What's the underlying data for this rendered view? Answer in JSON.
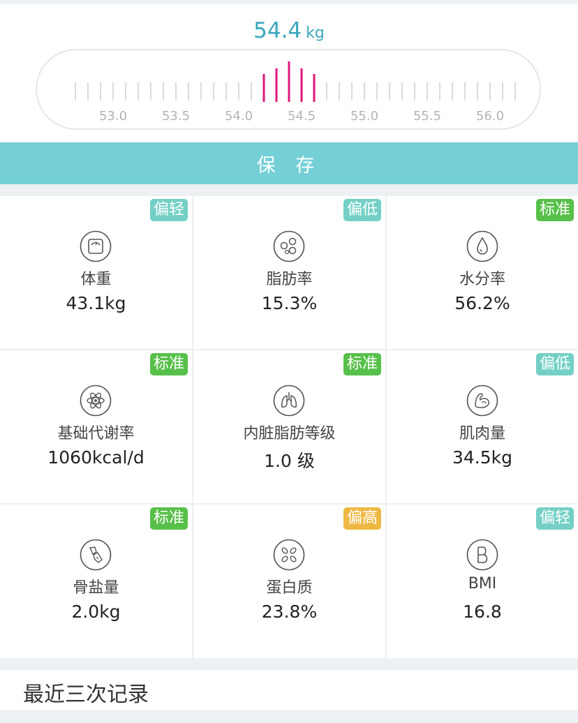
{
  "weight": {
    "value": "54.4",
    "unit": "kg"
  },
  "ruler": {
    "labels": [
      "53.0",
      "53.5",
      "54.0",
      "54.5",
      "55.0",
      "55.5",
      "56.0"
    ],
    "highlight_color": "#e0147a",
    "tick_color": "#cfcfcf"
  },
  "save_label": "保 存",
  "metrics": [
    {
      "name": "weight",
      "icon": "scale-icon",
      "label": "体重",
      "value": "43.1kg",
      "status": "偏轻",
      "status_color": "#74d0c6"
    },
    {
      "name": "body-fat",
      "icon": "fat-cells-icon",
      "label": "脂肪率",
      "value": "15.3%",
      "status": "偏低",
      "status_color": "#74d0c6"
    },
    {
      "name": "water",
      "icon": "water-drop-icon",
      "label": "水分率",
      "value": "56.2%",
      "status": "标准",
      "status_color": "#57c04a"
    },
    {
      "name": "bmr",
      "icon": "atom-icon",
      "label": "基础代谢率",
      "value": "1060kcal/d",
      "status": "标准",
      "status_color": "#57c04a"
    },
    {
      "name": "visceral-fat",
      "icon": "lungs-icon",
      "label": "内脏脂肪等级",
      "value": "1.0 级",
      "status": "标准",
      "status_color": "#57c04a"
    },
    {
      "name": "muscle",
      "icon": "muscle-icon",
      "label": "肌肉量",
      "value": "34.5kg",
      "status": "偏低",
      "status_color": "#74d0c6"
    },
    {
      "name": "bone",
      "icon": "bone-icon",
      "label": "骨盐量",
      "value": "2.0kg",
      "status": "标准",
      "status_color": "#57c04a"
    },
    {
      "name": "protein",
      "icon": "protein-icon",
      "label": "蛋白质",
      "value": "23.8%",
      "status": "偏高",
      "status_color": "#efb845"
    },
    {
      "name": "bmi",
      "icon": "bmi-icon",
      "label": "BMI",
      "value": "16.8",
      "status": "偏轻",
      "status_color": "#74d0c6"
    }
  ],
  "recent_title": "最近三次记录"
}
